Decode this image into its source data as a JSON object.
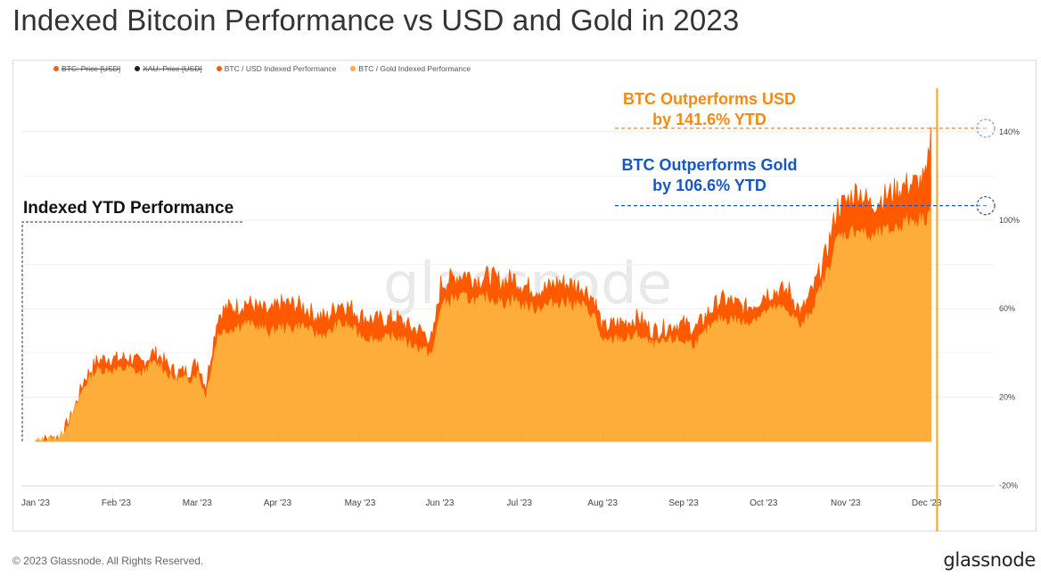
{
  "page": {
    "title": "Indexed Bitcoin Performance vs USD and Gold in 2023",
    "copyright": "© 2023 Glassnode. All Rights Reserved.",
    "logo": "glassnode",
    "watermark": "glassnode"
  },
  "legend": [
    {
      "label": "BTC: Price [USD]",
      "color": "#f0601a",
      "enabled": false
    },
    {
      "label": "XAU: Price [USD]",
      "color": "#222222",
      "enabled": false
    },
    {
      "label": "BTC / USD Indexed Performance",
      "color": "#ff5a00",
      "enabled": true
    },
    {
      "label": "BTC / Gold Indexed Performance",
      "color": "#ffad3a",
      "enabled": true
    }
  ],
  "annotations": {
    "usd_line1": "BTC Outperforms USD",
    "usd_line2": "by 141.6% YTD",
    "usd_color": "#f58a13",
    "gold_line1": "BTC Outperforms Gold",
    "gold_line2": "by 106.6% YTD",
    "gold_color": "#1757c9",
    "box_label": "Indexed YTD Performance"
  },
  "chart_data": {
    "type": "area",
    "title": "Indexed Bitcoin Performance vs USD and Gold in 2023",
    "y_ticks": [
      "-20%",
      "20%",
      "60%",
      "100%",
      "140%"
    ],
    "y_tick_values": [
      -20,
      20,
      60,
      100,
      140
    ],
    "ylim": [
      -20,
      140
    ],
    "x_ticks": [
      "Jan '23",
      "Feb '23",
      "Mar '23",
      "Apr '23",
      "May '23",
      "Jun '23",
      "Jul '23",
      "Aug '23",
      "Sep '23",
      "Oct '23",
      "Nov '23",
      "Dec '23"
    ],
    "x_month_index": [
      0,
      1,
      2,
      3,
      4,
      5,
      6,
      7,
      8,
      9,
      10,
      11
    ],
    "grid": true,
    "series": [
      {
        "name": "BTC / USD Indexed Performance",
        "color": "#ff5a00",
        "x": [
          0,
          0.3,
          0.45,
          0.6,
          0.75,
          0.9,
          1.0,
          1.15,
          1.3,
          1.45,
          1.55,
          1.65,
          1.75,
          1.9,
          2.0,
          2.1,
          2.15,
          2.25,
          2.35,
          2.5,
          2.6,
          2.75,
          2.9,
          3.0,
          3.15,
          3.3,
          3.45,
          3.6,
          3.75,
          3.9,
          4.0,
          4.15,
          4.3,
          4.45,
          4.6,
          4.75,
          4.9,
          5.0,
          5.15,
          5.3,
          5.45,
          5.6,
          5.75,
          5.9,
          6.0,
          6.15,
          6.3,
          6.45,
          6.6,
          6.75,
          6.9,
          7.0,
          7.15,
          7.3,
          7.45,
          7.6,
          7.75,
          7.9,
          8.0,
          8.15,
          8.3,
          8.45,
          8.6,
          8.75,
          8.9,
          9.0,
          9.15,
          9.3,
          9.45,
          9.6,
          9.75,
          9.9,
          10.0,
          10.15,
          10.3,
          10.45,
          10.6,
          10.75,
          10.9,
          11.0,
          11.05
        ],
        "values": [
          0,
          2,
          12,
          28,
          36,
          38,
          37,
          38,
          35,
          40,
          38,
          33,
          31,
          32,
          36,
          25,
          36,
          57,
          60,
          61,
          63,
          60,
          58,
          62,
          62,
          61,
          57,
          56,
          63,
          60,
          57,
          55,
          55,
          56,
          52,
          50,
          46,
          71,
          74,
          76,
          73,
          75,
          72,
          74,
          71,
          69,
          69,
          72,
          71,
          70,
          64,
          51,
          53,
          54,
          56,
          50,
          51,
          53,
          53,
          51,
          58,
          64,
          63,
          60,
          63,
          67,
          68,
          68,
          58,
          69,
          84,
          106,
          108,
          114,
          107,
          110,
          113,
          116,
          117,
          119,
          142
        ]
      },
      {
        "name": "BTC / Gold Indexed Performance",
        "color": "#ffad3a",
        "x": [
          0,
          0.3,
          0.45,
          0.6,
          0.75,
          0.9,
          1.0,
          1.15,
          1.3,
          1.45,
          1.55,
          1.65,
          1.75,
          1.9,
          2.0,
          2.1,
          2.15,
          2.25,
          2.35,
          2.5,
          2.6,
          2.75,
          2.9,
          3.0,
          3.15,
          3.3,
          3.45,
          3.6,
          3.75,
          3.9,
          4.0,
          4.15,
          4.3,
          4.45,
          4.6,
          4.75,
          4.9,
          5.0,
          5.15,
          5.3,
          5.45,
          5.6,
          5.75,
          5.9,
          6.0,
          6.15,
          6.3,
          6.45,
          6.6,
          6.75,
          6.9,
          7.0,
          7.15,
          7.3,
          7.45,
          7.6,
          7.75,
          7.9,
          8.0,
          8.15,
          8.3,
          8.45,
          8.6,
          8.75,
          8.9,
          9.0,
          9.15,
          9.3,
          9.45,
          9.6,
          9.75,
          9.9,
          10.0,
          10.15,
          10.3,
          10.45,
          10.6,
          10.75,
          10.9,
          11.0,
          11.05
        ],
        "values": [
          0,
          2,
          11,
          25,
          32,
          32,
          32,
          33,
          30,
          35,
          34,
          29,
          28,
          28,
          31,
          20,
          30,
          48,
          50,
          52,
          53,
          51,
          49,
          51,
          51,
          52,
          48,
          48,
          53,
          51,
          48,
          46,
          46,
          47,
          44,
          42,
          39,
          61,
          64,
          65,
          63,
          65,
          62,
          64,
          61,
          60,
          61,
          63,
          62,
          61,
          56,
          44,
          46,
          46,
          48,
          43,
          44,
          46,
          45,
          44,
          50,
          55,
          55,
          53,
          56,
          58,
          60,
          59,
          51,
          61,
          74,
          92,
          93,
          96,
          91,
          94,
          96,
          99,
          100,
          101,
          107
        ]
      }
    ]
  }
}
